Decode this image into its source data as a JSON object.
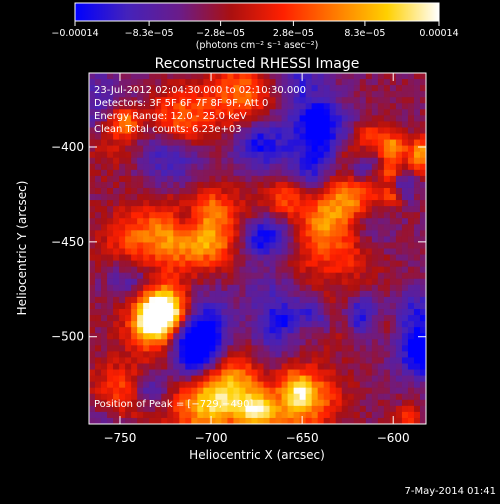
{
  "chart_data": {
    "type": "heatmap",
    "title": "Reconstructed RHESSI Image",
    "xlabel": "Heliocentric X (arcsec)",
    "ylabel": "Heliocentric Y (arcsec)",
    "xlim": [
      -767,
      -582
    ],
    "ylim": [
      -546,
      -361
    ],
    "x_ticks": [
      -750,
      -700,
      -650,
      -600
    ],
    "x_tick_labels": [
      "−750",
      "−700",
      "−650",
      "−600"
    ],
    "y_ticks": [
      -500,
      -450,
      -400
    ],
    "y_tick_labels": [
      "−500",
      "−450",
      "−400"
    ],
    "colorbar": {
      "min": -0.00014,
      "max": 0.00014,
      "ticks": [
        -0.00014,
        -8.3e-05,
        -2.8e-05,
        2.8e-05,
        8.3e-05,
        0.00014
      ],
      "tick_labels": [
        "−0.00014",
        "−8.3e−05",
        "−2.8e−05",
        "2.8e−05",
        "8.3e−05",
        "0.00014"
      ],
      "units_text": "(photons cm⁻² s⁻¹ asec⁻²)",
      "colormap": [
        "#0000ff",
        "#4422bb",
        "#6a1c8a",
        "#aa1010",
        "#ff2000",
        "#ff7a00",
        "#ffd000",
        "#ffffff"
      ]
    },
    "grid": false,
    "peak": {
      "x": -729,
      "y": -490
    },
    "annotations": [
      "23-Jul-2012 02:04:30.000 to 02:10:30.000",
      "Detectors: 3F 5F 6F 7F 8F 9F, Att 0",
      "Energy Range: 12.0 - 25.0 keV",
      "Clean     Total counts: 6.23e+03"
    ],
    "peak_label": "Position of Peak = [−729,−490]",
    "footer_date": "7-May-2014 01:41"
  }
}
